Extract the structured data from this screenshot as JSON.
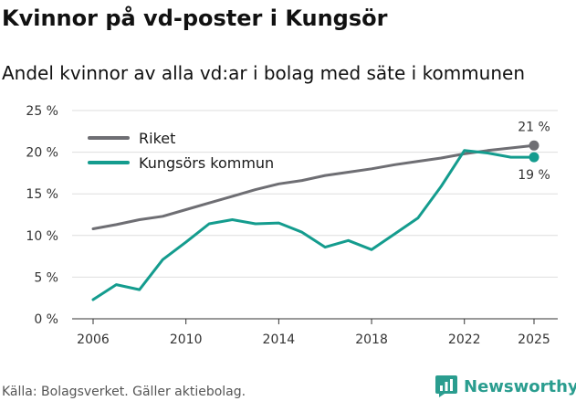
{
  "chart_data": {
    "type": "line",
    "title": "Kvinnor på vd-poster i Kungsör",
    "subtitle": "Andel kvinnor av alla vd:ar i bolag med säte i kommunen",
    "xlabel": "",
    "ylabel": "",
    "xlim": [
      2006,
      2025
    ],
    "ylim": [
      0,
      25
    ],
    "x_ticks": [
      2006,
      2010,
      2014,
      2018,
      2022,
      2025
    ],
    "x_tick_labels": [
      "2006",
      "2010",
      "2014",
      "2018",
      "2022",
      "2025"
    ],
    "y_ticks": [
      0,
      5,
      10,
      15,
      20,
      25
    ],
    "y_tick_labels": [
      "0 %",
      "5 %",
      "10 %",
      "15 %",
      "20 %",
      "25 %"
    ],
    "grid": true,
    "legend_position": "top-left",
    "x": [
      2006,
      2007,
      2008,
      2009,
      2010,
      2011,
      2012,
      2013,
      2014,
      2015,
      2016,
      2017,
      2018,
      2019,
      2020,
      2021,
      2022,
      2023,
      2024,
      2025
    ],
    "series": [
      {
        "name": "Riket",
        "color": "#6e6e73",
        "values": [
          10.8,
          11.3,
          11.9,
          12.3,
          13.1,
          13.9,
          14.7,
          15.5,
          16.2,
          16.6,
          17.2,
          17.6,
          18.0,
          18.5,
          18.9,
          19.3,
          19.8,
          20.2,
          20.5,
          20.8
        ],
        "end_label": "21 %"
      },
      {
        "name": "Kungsörs kommun",
        "color": "#149c8e",
        "values": [
          2.3,
          4.1,
          3.5,
          7.1,
          9.2,
          11.4,
          11.9,
          11.4,
          11.5,
          10.4,
          8.6,
          9.4,
          8.3,
          10.2,
          12.1,
          15.9,
          20.2,
          19.9,
          19.4,
          19.4
        ],
        "end_label": "19 %"
      }
    ]
  },
  "footer": {
    "source": "Källa: Bolagsverket. Gäller aktiebolag."
  },
  "brand": {
    "name": "Newsworthy",
    "color": "#2a9d8f",
    "icon": "newsworthy-logo-icon"
  }
}
